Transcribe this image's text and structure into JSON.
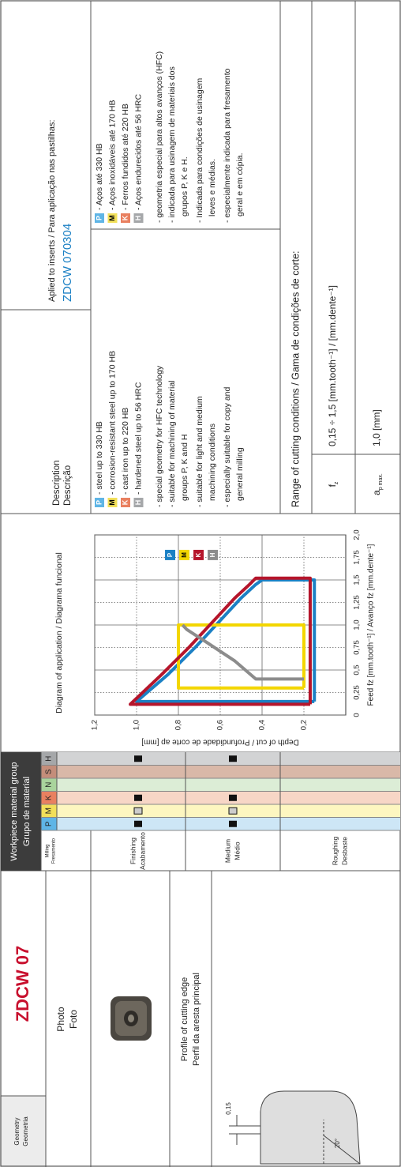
{
  "geometry": {
    "label": [
      "Geometry",
      "Geometria"
    ],
    "name": "ZDCW 07"
  },
  "photo": {
    "label": [
      "Photo",
      "Foto"
    ],
    "profile_label": [
      "Profile of cutting edge",
      "Perfil da aresta principal"
    ],
    "dimension": "0,15",
    "angle": "20°"
  },
  "material_group": {
    "title": [
      "Workpiece material group",
      "Grupo de material"
    ],
    "milling": [
      "Milling",
      "Fresamento"
    ],
    "materials": [
      "P",
      "M",
      "K",
      "N",
      "S",
      "H"
    ],
    "colors": [
      "#5fb5e6",
      "#f2e05a",
      "#e98060",
      "#a9d49c",
      "#c48d7a",
      "#a5a7a9"
    ],
    "tints": [
      "#cde6f6",
      "#fdf6c0",
      "#f7d6c6",
      "#dcedd6",
      "#d9b8a8",
      "#d2d3d4"
    ],
    "rows": [
      {
        "label": [
          "Finishing",
          "Acabamento"
        ],
        "filled": [
          true,
          false,
          true,
          false,
          false,
          true
        ],
        "open": [
          false,
          true,
          false,
          false,
          false,
          false
        ]
      },
      {
        "label": [
          "Medium",
          "Médio"
        ],
        "filled": [
          true,
          false,
          true,
          false,
          false,
          true
        ],
        "open": [
          false,
          true,
          false,
          false,
          false,
          false
        ]
      },
      {
        "label": [
          "Roughing",
          "Desbaste"
        ],
        "filled": [
          false,
          false,
          false,
          false,
          false,
          false
        ],
        "open": [
          false,
          false,
          false,
          false,
          false,
          false
        ]
      }
    ]
  },
  "chart_data": {
    "type": "line",
    "title": "Diagram of application / Diagrama funcional",
    "x_label": "Feed fz [mm.tooth⁻¹] / Avanço fz [mm.dente⁻¹]",
    "y_label": "Depth of cut / Profundidade de corte ap [mm]",
    "xlim": [
      0,
      2
    ],
    "ylim": [
      0,
      1.2
    ],
    "xticks": [
      0,
      {
        "value": 0.25,
        "label": "0,25"
      },
      {
        "value": 0.5,
        "label": "0,5"
      },
      {
        "value": 0.75,
        "label": "0,75"
      },
      {
        "value": 1,
        "label": "1,0"
      },
      {
        "value": 1.25,
        "label": "1,25"
      },
      {
        "value": 1.5,
        "label": "1,5"
      },
      {
        "value": 1.75,
        "label": "1,75"
      },
      {
        "value": 2,
        "label": "2,0"
      }
    ],
    "yticks": [
      {
        "value": 0.2,
        "label": "0,2"
      },
      {
        "value": 0.4,
        "label": "0,4"
      },
      {
        "value": 0.6,
        "label": "0,6"
      },
      {
        "value": 0.8,
        "label": "0,8"
      },
      {
        "value": 1,
        "label": "1,0"
      },
      {
        "value": 1.2,
        "label": "1,2"
      }
    ],
    "grid": true,
    "legend": "upper right",
    "series": [
      {
        "name": "P",
        "color": "#1b80c4",
        "x": [
          0.15,
          0.15,
          0.45,
          0.75,
          1.05,
          1.3,
          1.45,
          1.5,
          1.5,
          0.15
        ],
        "values": [
          0.15,
          1.0,
          0.85,
          0.72,
          0.6,
          0.5,
          0.43,
          0.4,
          0.15,
          0.15
        ]
      },
      {
        "name": "M",
        "color": "#f3d600",
        "x": [
          0.3,
          0.3,
          1.0,
          1.0,
          0.3
        ],
        "values": [
          0.2,
          0.8,
          0.8,
          0.2,
          0.2
        ]
      },
      {
        "name": "K",
        "color": "#b5152b",
        "x": [
          0.12,
          0.12,
          0.45,
          0.75,
          1.05,
          1.3,
          1.45,
          1.52,
          1.52,
          0.12
        ],
        "values": [
          0.17,
          1.03,
          0.88,
          0.75,
          0.63,
          0.53,
          0.46,
          0.43,
          0.17,
          0.17
        ]
      },
      {
        "name": "H",
        "color": "#8c8c8c",
        "x": [
          0.4,
          0.4,
          0.6,
          0.8,
          0.95,
          1.0
        ],
        "values": [
          0.2,
          0.43,
          0.53,
          0.66,
          0.76,
          0.78
        ]
      }
    ]
  },
  "description": {
    "label": [
      "Description",
      "Descrição"
    ],
    "applied": "Aplied to inserts / Para aplicação nas pastilhas:",
    "insert": "ZDCW 070304",
    "english": {
      "materials": [
        {
          "letter": "P",
          "text": "- steel up to 330 HB"
        },
        {
          "letter": "M",
          "text": "- corrosion-resistant steel up to 170 HB"
        },
        {
          "letter": "K",
          "text": "- cast iron up to 220 HB"
        },
        {
          "letter": "H",
          "text": "- hardened steel up to 56 HRC"
        }
      ],
      "notes": [
        "- special geometry for HFC technology",
        "- suitable for machining of material",
        "groups P, K and H",
        "- suitable for light and medium",
        "machining conditions",
        "- especially suitable for copy and",
        "general milling"
      ]
    },
    "portuguese": {
      "materials": [
        {
          "letter": "P",
          "text": "- Aços até 330 HB"
        },
        {
          "letter": "M",
          "text": "- Aços inoxidáveis até 170 HB"
        },
        {
          "letter": "K",
          "text": "- Ferros fundidos até 220 HB"
        },
        {
          "letter": "H",
          "text": "- Aços endurecidos até 56 HRC"
        }
      ],
      "notes": [
        "- geometria especial para altos avanços (HFC)",
        "- indicada para usinagem de materiais dos",
        "grupos P, K e H.",
        "- Indicada para condições de usinagem",
        "leves e médias.",
        "- especialmente indicada para fresamento",
        "geral e em cópia."
      ]
    },
    "range": "Range of cutting conditions / Gama de condições de corte:",
    "conditions": [
      {
        "symbol": "f",
        "sub": "z",
        "value": "0,15 ÷ 1,5 [mm.tooth⁻¹] / [mm.dente⁻¹]"
      },
      {
        "symbol": "a",
        "sub": "p max.",
        "value": "1,0 [mm]"
      }
    ]
  }
}
